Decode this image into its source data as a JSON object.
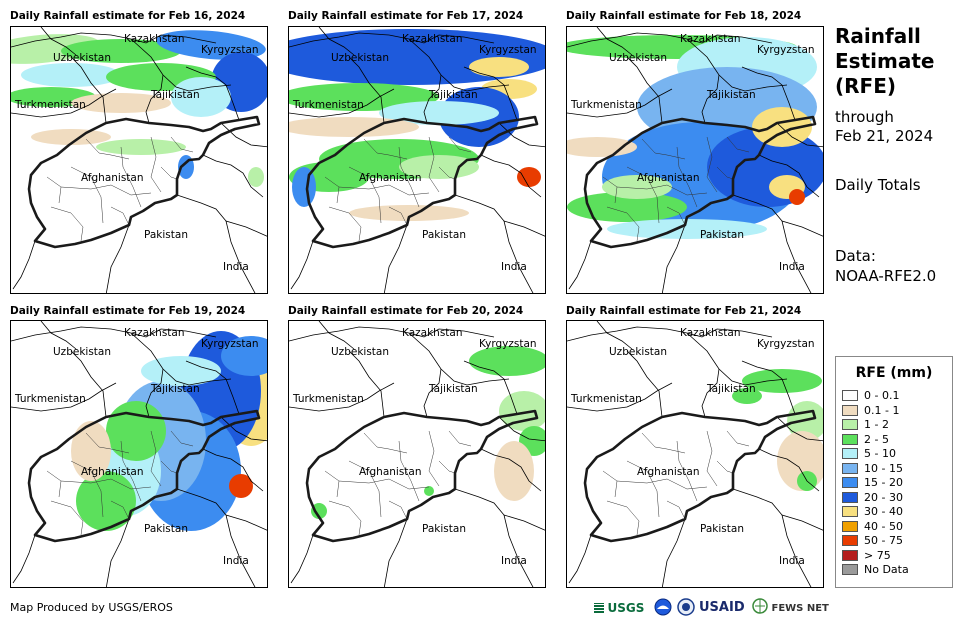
{
  "panels": [
    {
      "title": "Daily Rainfall estimate for Feb 16, 2024"
    },
    {
      "title": "Daily Rainfall estimate for Feb 17, 2024"
    },
    {
      "title": "Daily Rainfall estimate for Feb 18, 2024"
    },
    {
      "title": "Daily Rainfall estimate for Feb 19, 2024"
    },
    {
      "title": "Daily Rainfall estimate for Feb 20, 2024"
    },
    {
      "title": "Daily Rainfall estimate for Feb 21, 2024"
    }
  ],
  "countries": {
    "kazakhstan": "Kazakhstan",
    "kyrgyzstan": "Kyrgyzstan",
    "uzbekistan": "Uzbekistan",
    "tajikistan": "Tajikistan",
    "turkmenistan": "Turkmenistan",
    "afghanistan": "Afghanistan",
    "pakistan": "Pakistan",
    "india": "India"
  },
  "sidebar": {
    "title_line1": "Rainfall",
    "title_line2": "Estimate",
    "title_line3": "(RFE)",
    "through_label": "through",
    "through_date": "Feb 21, 2024",
    "totals_label": "Daily Totals",
    "data_label": "Data:",
    "data_source": "NOAA-RFE2.0"
  },
  "legend": {
    "title": "RFE (mm)",
    "items": [
      {
        "label": "0 - 0.1",
        "color": "#ffffff"
      },
      {
        "label": "0.1 - 1",
        "color": "#f0dcc0"
      },
      {
        "label": "1 - 2",
        "color": "#b8f0a8"
      },
      {
        "label": "2 - 5",
        "color": "#5ce05c"
      },
      {
        "label": "5 - 10",
        "color": "#b4f0f8"
      },
      {
        "label": "10 - 15",
        "color": "#78b4f0"
      },
      {
        "label": "15 - 20",
        "color": "#3c8cf0"
      },
      {
        "label": "20 - 30",
        "color": "#1e5adc"
      },
      {
        "label": "30 - 40",
        "color": "#f8e080"
      },
      {
        "label": "40 - 50",
        "color": "#f0a000"
      },
      {
        "label": "50 - 75",
        "color": "#e83c00"
      },
      {
        "label": "> 75",
        "color": "#b41e1e"
      },
      {
        "label": "No Data",
        "color": "#9a9a9a"
      }
    ]
  },
  "footer": {
    "credit": "Map Produced by USGS/EROS",
    "logo_usgs": "USGS",
    "logo_usaid": "USAID",
    "logo_fewsnet": "FEWS NET"
  }
}
